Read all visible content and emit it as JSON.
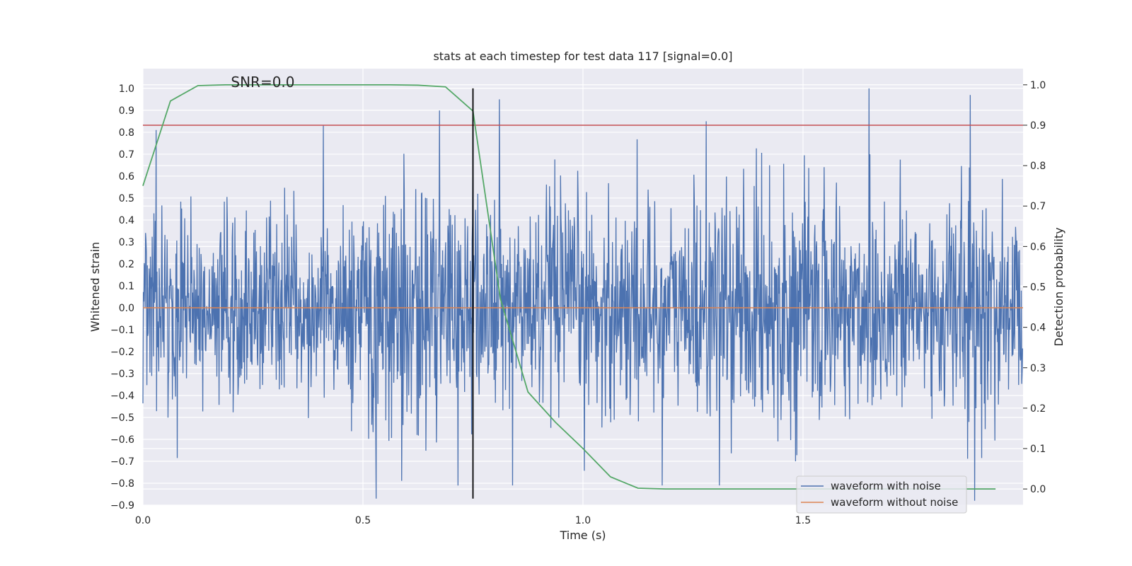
{
  "chart_data": {
    "type": "line",
    "title": "stats at each timestep for test data 117 [signal=0.0]",
    "xlabel": "Time (s)",
    "ylabel": "Whitened strain",
    "ylabel_right": "Detection probability",
    "annotation": "SNR=0.0",
    "xlim": [
      0.0,
      2.0
    ],
    "ylim": [
      -0.9,
      1.09
    ],
    "ylim_right": [
      -0.04,
      1.04
    ],
    "x_ticks": [
      "0.0",
      "0.5",
      "1.0",
      "1.5"
    ],
    "x_tick_values": [
      0.0,
      0.5,
      1.0,
      1.5
    ],
    "y_ticks": [
      "−0.9",
      "−0.8",
      "−0.7",
      "−0.6",
      "−0.5",
      "−0.4",
      "−0.3",
      "−0.2",
      "−0.1",
      "0.0",
      "0.1",
      "0.2",
      "0.3",
      "0.4",
      "0.5",
      "0.6",
      "0.7",
      "0.8",
      "0.9",
      "1.0"
    ],
    "y_tick_values": [
      -0.9,
      -0.8,
      -0.7,
      -0.6,
      -0.5,
      -0.4,
      -0.3,
      -0.2,
      -0.1,
      0.0,
      0.1,
      0.2,
      0.3,
      0.4,
      0.5,
      0.6,
      0.7,
      0.8,
      0.9,
      1.0
    ],
    "y_right_ticks": [
      "0.0",
      "0.1",
      "0.2",
      "0.3",
      "0.4",
      "0.5",
      "0.6",
      "0.7",
      "0.8",
      "0.9",
      "1.0"
    ],
    "y_right_tick_values": [
      0.0,
      0.1,
      0.2,
      0.3,
      0.4,
      0.5,
      0.6,
      0.7,
      0.8,
      0.9,
      1.0
    ],
    "grid": true,
    "legend_position": "bottom-right",
    "noise_series": {
      "name": "waveform with noise",
      "color": "#4c72b0",
      "sample_rate": 2048,
      "amplitude_envelope": [
        [
          0.0,
          0.42
        ],
        [
          0.3,
          0.42
        ],
        [
          0.45,
          0.38
        ],
        [
          0.6,
          0.5
        ],
        [
          0.75,
          0.46
        ],
        [
          1.25,
          0.44
        ],
        [
          1.6,
          0.5
        ],
        [
          2.0,
          0.46
        ]
      ],
      "notable_peaks": [
        {
          "x": 0.03,
          "y": 0.81
        },
        {
          "x": 0.41,
          "y": 0.83
        },
        {
          "x": 0.53,
          "y": -0.87
        },
        {
          "x": 0.75,
          "y": 0.87
        },
        {
          "x": 0.81,
          "y": 0.95
        },
        {
          "x": 1.28,
          "y": 0.85
        },
        {
          "x": 1.31,
          "y": -0.81
        },
        {
          "x": 1.65,
          "y": 1.0
        },
        {
          "x": 1.88,
          "y": 0.97
        },
        {
          "x": 1.89,
          "y": -0.88
        },
        {
          "x": 1.18,
          "y": -0.81
        },
        {
          "x": 0.84,
          "y": -0.81
        }
      ]
    },
    "clean_series": {
      "name": "waveform without noise",
      "color": "#dd8452",
      "value": 0.0
    },
    "probability_series": {
      "name": "Detection probability",
      "color": "#55a868",
      "x": [
        0.0,
        0.0625,
        0.125,
        0.1875,
        0.25,
        0.3125,
        0.375,
        0.4375,
        0.5,
        0.5625,
        0.625,
        0.6875,
        0.75,
        0.8125,
        0.875,
        0.9375,
        1.0,
        1.0625,
        1.125,
        1.1875,
        1.25,
        1.3125,
        1.375,
        1.4375,
        1.5,
        1.5625,
        1.625,
        1.6875,
        1.75,
        1.8125,
        1.875,
        1.9375
      ],
      "y": [
        0.75,
        0.96,
        0.998,
        1.0,
        1.0,
        1.0,
        1.0,
        1.0,
        1.0,
        1.0,
        0.999,
        0.995,
        0.935,
        0.47,
        0.24,
        0.165,
        0.1,
        0.03,
        0.002,
        0.0,
        0.0,
        0.0,
        0.0,
        0.0,
        0.0,
        0.0,
        0.0,
        0.0,
        0.0,
        0.0,
        0.0,
        0.0
      ]
    },
    "threshold_line": {
      "value": 0.9,
      "axis": "right",
      "color": "#c44e52"
    },
    "marker_line": {
      "x": 0.75,
      "y_from": -0.87,
      "y_to": 1.0,
      "color": "#000000"
    },
    "legend": [
      "waveform with noise",
      "waveform without noise"
    ]
  }
}
